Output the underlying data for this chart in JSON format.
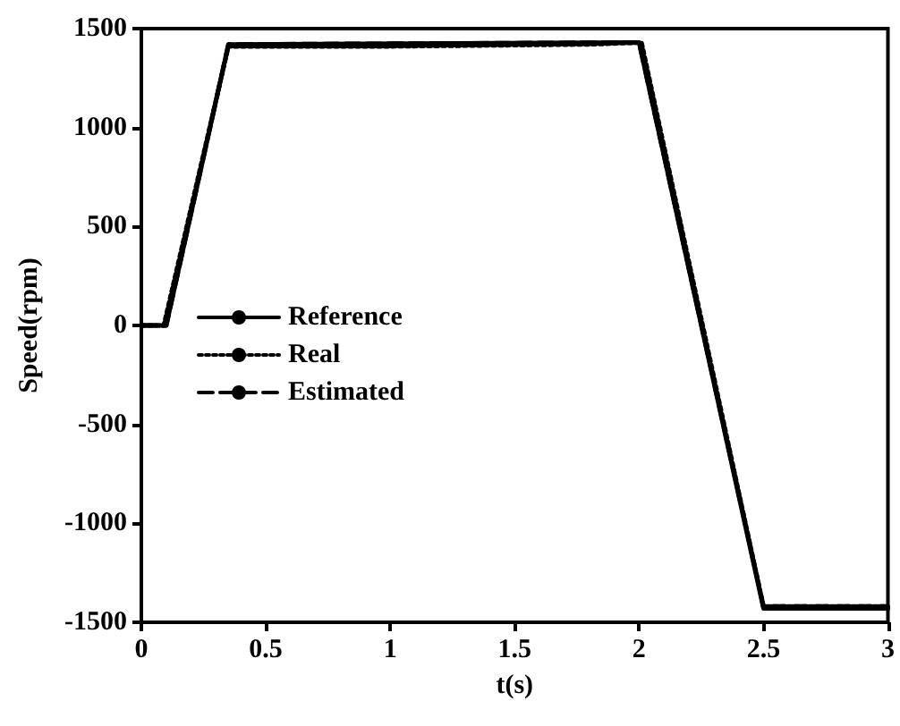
{
  "chart_data": {
    "type": "line",
    "xlabel": "t(s)",
    "ylabel": "Speed(rpm)",
    "xlim": [
      0,
      3
    ],
    "xticks": [
      0,
      0.5,
      1,
      1.5,
      2,
      2.5,
      3
    ],
    "ylim": [
      -1500,
      1500
    ],
    "yticks": [
      -1500,
      -1000,
      -500,
      0,
      500,
      1000,
      1500
    ],
    "grid": false,
    "legend": "left",
    "marker": "none",
    "series": [
      {
        "name": "Reference",
        "color": "#000000",
        "line_style": "solid",
        "x": [
          0,
          0.1,
          0.35,
          2.0,
          2.5,
          3
        ],
        "values": [
          0,
          0,
          1420,
          1430,
          -1430,
          -1430
        ]
      },
      {
        "name": "Real",
        "color": "#000000",
        "line_style": "dotted",
        "x": [
          0,
          0.09,
          0.35,
          1.0,
          1.8,
          2.01,
          2.5,
          3
        ],
        "values": [
          0,
          0,
          1410,
          1410,
          1420,
          1430,
          -1420,
          -1420
        ]
      },
      {
        "name": "Estimated",
        "color": "#000000",
        "line_style": "dashed",
        "x": [
          0,
          0.1,
          0.35,
          2.0,
          2.5,
          3
        ],
        "values": [
          0,
          0,
          1420,
          1430,
          -1420,
          -1420
        ]
      }
    ]
  }
}
